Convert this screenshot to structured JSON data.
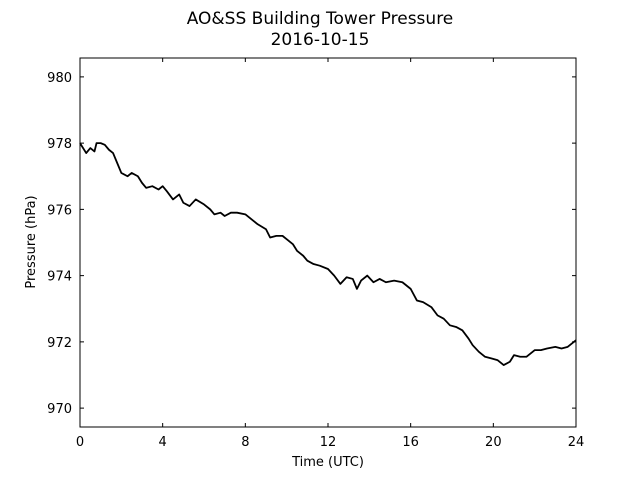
{
  "chart_data": {
    "type": "line",
    "title": "AO&SS Building Tower Pressure",
    "subtitle": "2016-10-15",
    "x_label": "Time (UTC)",
    "y_label": "Pressure (hPa)",
    "color": "#000000",
    "mirror_ticks": true,
    "grid": false,
    "xlim": [
      0,
      24
    ],
    "xticks": [
      0,
      4,
      8,
      12,
      16,
      20,
      24
    ],
    "ylim": [
      969.43,
      980.57
    ],
    "yticks": [
      970,
      972,
      974,
      976,
      978,
      980
    ],
    "x": [
      0,
      0.3,
      0.5,
      0.7,
      0.8,
      1.0,
      1.2,
      1.4,
      1.6,
      1.8,
      2.0,
      2.3,
      2.5,
      2.8,
      3.0,
      3.2,
      3.5,
      3.8,
      4.0,
      4.2,
      4.5,
      4.8,
      5.0,
      5.3,
      5.6,
      6.0,
      6.3,
      6.5,
      6.8,
      7.0,
      7.3,
      7.6,
      8.0,
      8.3,
      8.6,
      9.0,
      9.2,
      9.5,
      9.8,
      10.0,
      10.3,
      10.5,
      10.8,
      11.0,
      11.3,
      11.6,
      12.0,
      12.3,
      12.6,
      12.9,
      13.2,
      13.4,
      13.6,
      13.9,
      14.2,
      14.5,
      14.8,
      15.2,
      15.6,
      16.0,
      16.3,
      16.6,
      17.0,
      17.3,
      17.6,
      17.9,
      18.2,
      18.5,
      18.8,
      19.0,
      19.3,
      19.6,
      19.9,
      20.2,
      20.5,
      20.8,
      21.0,
      21.3,
      21.6,
      22.0,
      22.3,
      22.6,
      23.0,
      23.3,
      23.6,
      24.0
    ],
    "values": [
      978.0,
      977.7,
      977.85,
      977.75,
      978.0,
      978.0,
      977.95,
      977.8,
      977.7,
      977.4,
      977.1,
      977.0,
      977.1,
      977.0,
      976.8,
      976.65,
      976.7,
      976.6,
      976.7,
      976.55,
      976.3,
      976.45,
      976.2,
      976.1,
      976.3,
      976.15,
      976.0,
      975.85,
      975.9,
      975.8,
      975.9,
      975.9,
      975.85,
      975.7,
      975.55,
      975.4,
      975.15,
      975.2,
      975.2,
      975.1,
      974.95,
      974.75,
      974.6,
      974.45,
      974.35,
      974.3,
      974.2,
      974.0,
      973.75,
      973.95,
      973.9,
      973.6,
      973.85,
      974.0,
      973.8,
      973.9,
      973.8,
      973.85,
      973.8,
      973.6,
      973.25,
      973.2,
      973.05,
      972.8,
      972.7,
      972.5,
      972.45,
      972.35,
      972.1,
      971.9,
      971.7,
      971.55,
      971.5,
      971.45,
      971.3,
      971.4,
      971.6,
      971.55,
      971.55,
      971.75,
      971.75,
      971.8,
      971.85,
      971.8,
      971.85,
      972.05
    ]
  }
}
